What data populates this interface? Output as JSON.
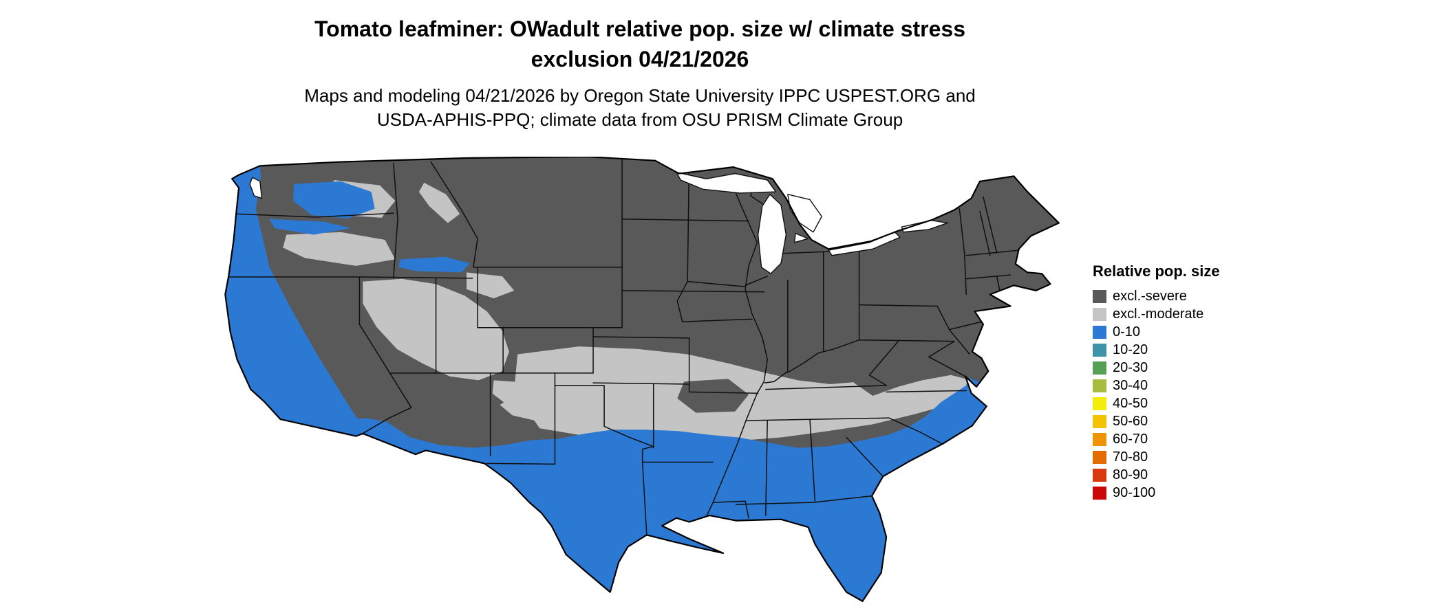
{
  "title": {
    "line1": "Tomato leafminer: OWadult relative pop. size w/ climate stress",
    "line2": "exclusion 04/21/2026"
  },
  "subtitle": {
    "line1": "Maps and modeling 04/21/2026 by Oregon State University IPPC USPEST.ORG and",
    "line2": "USDA-APHIS-PPQ; climate data from OSU PRISM Climate Group"
  },
  "legend": {
    "title": "Relative pop. size",
    "items": [
      {
        "label": "excl.-severe",
        "color": "#595959"
      },
      {
        "label": "excl.-moderate",
        "color": "#c4c4c4"
      },
      {
        "label": "0-10",
        "color": "#2b79d3"
      },
      {
        "label": "10-20",
        "color": "#3e93a9"
      },
      {
        "label": "20-30",
        "color": "#55a054"
      },
      {
        "label": "30-40",
        "color": "#a8bc40"
      },
      {
        "label": "40-50",
        "color": "#f2ee0a"
      },
      {
        "label": "50-60",
        "color": "#f2c204"
      },
      {
        "label": "60-70",
        "color": "#ef9405"
      },
      {
        "label": "70-80",
        "color": "#e36c00"
      },
      {
        "label": "80-90",
        "color": "#d8390e"
      },
      {
        "label": "90-100",
        "color": "#cb0707"
      }
    ]
  },
  "colors": {
    "severe": "#595959",
    "moderate": "#c4c4c4",
    "low": "#2b79d3",
    "water": "#ffffff"
  }
}
